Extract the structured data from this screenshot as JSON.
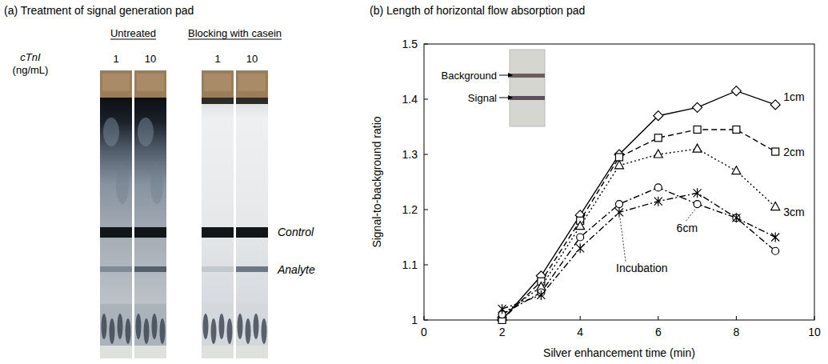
{
  "panel_a": {
    "title": "(a) Treatment of signal generation pad",
    "analyte": "cTnI",
    "unit": "(ng/mL)",
    "groups": [
      {
        "label": "Untreated",
        "lanes": [
          1,
          10
        ]
      },
      {
        "label": "Blocking with casein",
        "lanes": [
          1,
          10
        ]
      }
    ],
    "bands": [
      "Control",
      "Analyte"
    ]
  },
  "chart_data": {
    "type": "line",
    "title": "(b) Length of horizontal flow absorption pad",
    "x_label": "Silver enhancement time (min)",
    "y_label": "Signal-to-background ratio",
    "x": [
      2,
      3,
      4,
      5,
      6,
      7,
      8,
      9
    ],
    "series": [
      {
        "name": "1cm",
        "color": "#000000",
        "marker": "diamond",
        "line_style": "solid",
        "values": [
          1.0,
          1.08,
          1.19,
          1.3,
          1.37,
          1.385,
          1.415,
          1.39
        ]
      },
      {
        "name": "2cm",
        "color": "#000000",
        "marker": "square",
        "line_style": "dashed",
        "values": [
          1.0,
          1.07,
          1.18,
          1.295,
          1.33,
          1.345,
          1.345,
          1.305
        ]
      },
      {
        "name": "3cm",
        "color": "#000000",
        "marker": "triangle",
        "line_style": "dotted",
        "values": [
          1.01,
          1.06,
          1.17,
          1.28,
          1.3,
          1.31,
          1.27,
          1.205
        ]
      },
      {
        "name": "6cm",
        "color": "#000000",
        "marker": "circle",
        "line_style": "dashdot",
        "values": [
          1.01,
          1.05,
          1.15,
          1.21,
          1.24,
          1.21,
          1.185,
          1.125
        ]
      },
      {
        "name": "Incubation",
        "color": "#000000",
        "marker": "asterisk",
        "line_style": "dashdot",
        "values": [
          1.02,
          1.045,
          1.13,
          1.195,
          1.215,
          1.23,
          1.185,
          1.15
        ]
      }
    ],
    "xlim": [
      0,
      10
    ],
    "xticks": [
      0,
      2,
      4,
      6,
      8,
      10
    ],
    "ylim": [
      1,
      1.5
    ],
    "yticks": [
      1,
      1.1,
      1.2,
      1.3,
      1.4,
      1.5
    ],
    "grid": false,
    "annotations": [
      "Background",
      "Signal"
    ]
  }
}
